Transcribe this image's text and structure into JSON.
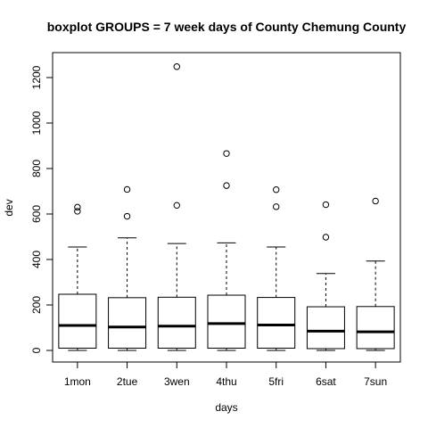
{
  "chart_data": {
    "type": "boxplot",
    "title": "boxplot GROUPS = 7 week days of County Chemung County",
    "xlabel": "days",
    "ylabel": "dev",
    "ylim": [
      -50,
      1300
    ],
    "yticks": [
      0,
      200,
      400,
      600,
      800,
      1000,
      1200
    ],
    "categories": [
      "1mon",
      "2tue",
      "3wen",
      "4thu",
      "5fri",
      "6sat",
      "7sun"
    ],
    "boxes": [
      {
        "category": "1mon",
        "whisker_low": 0,
        "q1": 10,
        "median": 110,
        "q3": 247,
        "whisker_high": 455,
        "outliers": [
          612,
          630
        ]
      },
      {
        "category": "2tue",
        "whisker_low": 0,
        "q1": 10,
        "median": 103,
        "q3": 232,
        "whisker_high": 495,
        "outliers": [
          590,
          708
        ]
      },
      {
        "category": "3wen",
        "whisker_low": 0,
        "q1": 10,
        "median": 107,
        "q3": 234,
        "whisker_high": 470,
        "outliers": [
          638,
          1248
        ]
      },
      {
        "category": "4thu",
        "whisker_low": 0,
        "q1": 10,
        "median": 118,
        "q3": 243,
        "whisker_high": 473,
        "outliers": [
          725,
          866
        ]
      },
      {
        "category": "5fri",
        "whisker_low": 0,
        "q1": 10,
        "median": 112,
        "q3": 233,
        "whisker_high": 455,
        "outliers": [
          632,
          707
        ]
      },
      {
        "category": "6sat",
        "whisker_low": 0,
        "q1": 8,
        "median": 85,
        "q3": 192,
        "whisker_high": 338,
        "outliers": [
          498,
          641
        ]
      },
      {
        "category": "7sun",
        "whisker_low": 0,
        "q1": 8,
        "median": 82,
        "q3": 193,
        "whisker_high": 393,
        "outliers": [
          657
        ]
      }
    ],
    "grid": false,
    "legend": "none",
    "colors": {
      "box_fill": "#ffffff",
      "stroke": "#000000"
    }
  }
}
